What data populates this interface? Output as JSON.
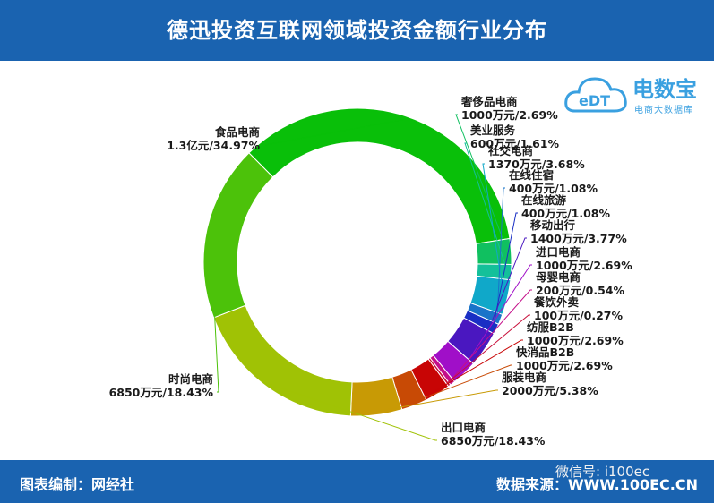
{
  "header": {
    "title": "德迅投资互联网领域投资金额行业分布"
  },
  "footer": {
    "left": "图表编制：网经社",
    "right": "数据来源：WWW.100EC.CN",
    "watermark": "微信号: i100ec"
  },
  "logo": {
    "text": "电数宝",
    "sub": "电商大数据库",
    "badge": "eDT"
  },
  "chart_data": {
    "type": "pie",
    "donut": true,
    "title": "德迅投资互联网领域投资金额行业分布",
    "series": [
      {
        "name": "食品电商",
        "amount": "1.3亿元",
        "percent": 34.97,
        "label_pct": "34.97%",
        "color": "#09bf09"
      },
      {
        "name": "奢侈品电商",
        "amount": "1000万元",
        "percent": 2.69,
        "label_pct": "2.69%",
        "color": "#10c060"
      },
      {
        "name": "美业服务",
        "amount": "600万元",
        "percent": 1.61,
        "label_pct": "1.61%",
        "color": "#14c09a"
      },
      {
        "name": "社交电商",
        "amount": "1370万元",
        "percent": 3.68,
        "label_pct": "3.68%",
        "color": "#10a8c9"
      },
      {
        "name": "在线住宿",
        "amount": "400万元",
        "percent": 1.08,
        "label_pct": "1.08%",
        "color": "#1a74c9"
      },
      {
        "name": "在线旅游",
        "amount": "400万元",
        "percent": 1.08,
        "label_pct": "1.08%",
        "color": "#1a2fc4"
      },
      {
        "name": "移动出行",
        "amount": "1400万元",
        "percent": 3.77,
        "label_pct": "3.77%",
        "color": "#4a17c0"
      },
      {
        "name": "进口电商",
        "amount": "1000万元",
        "percent": 2.69,
        "label_pct": "2.69%",
        "color": "#a00fc8"
      },
      {
        "name": "母婴电商",
        "amount": "200万元",
        "percent": 0.54,
        "label_pct": "0.54%",
        "color": "#c40f8a"
      },
      {
        "name": "餐饮外卖",
        "amount": "100万元",
        "percent": 0.27,
        "label_pct": "0.27%",
        "color": "#c80f3a"
      },
      {
        "name": "纺服B2B",
        "amount": "1000万元",
        "percent": 2.69,
        "label_pct": "2.69%",
        "color": "#c80505"
      },
      {
        "name": "快消品B2B",
        "amount": "1000万元",
        "percent": 2.69,
        "label_pct": "2.69%",
        "color": "#c84a05"
      },
      {
        "name": "服装电商",
        "amount": "2000万元",
        "percent": 5.38,
        "label_pct": "5.38%",
        "color": "#c89a05"
      },
      {
        "name": "出口电商",
        "amount": "6850万元",
        "percent": 18.43,
        "label_pct": "18.43%",
        "color": "#a0c205"
      },
      {
        "name": "时尚电商",
        "amount": "6850万元",
        "percent": 18.43,
        "label_pct": "18.43%",
        "color": "#4cc20a"
      }
    ]
  }
}
